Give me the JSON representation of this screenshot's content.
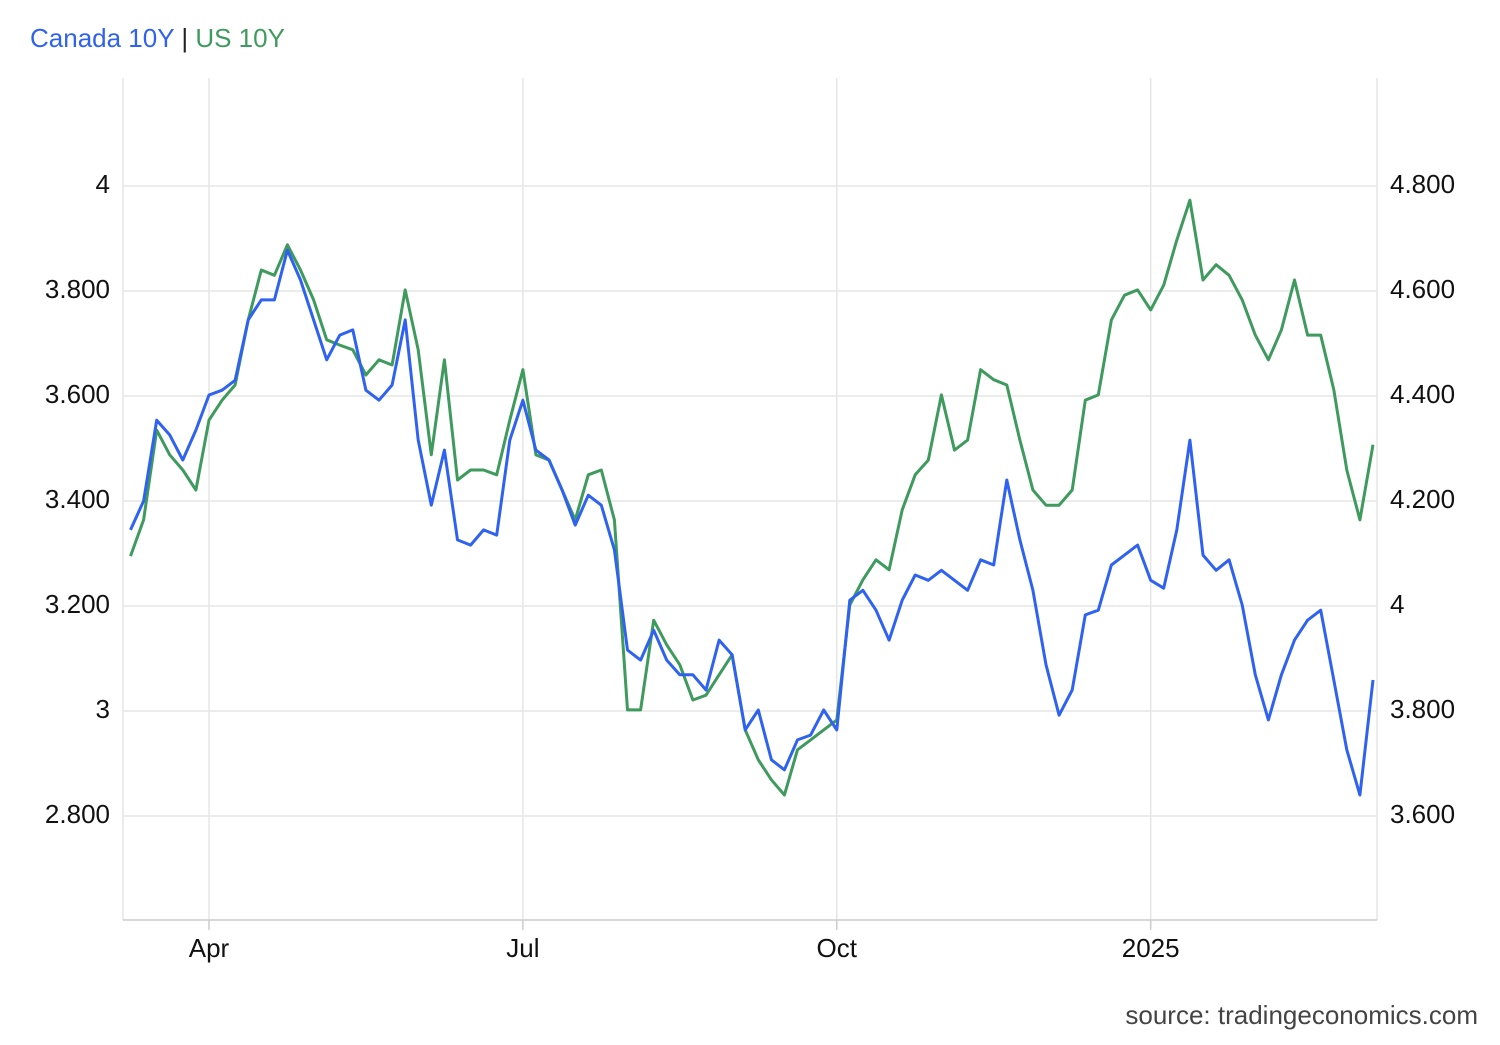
{
  "chart_data": {
    "type": "line",
    "title_separator": "|",
    "source": "source: tradingeconomics.com",
    "categories": [
      null,
      null,
      null,
      null,
      null,
      null,
      "Apr",
      null,
      null,
      null,
      null,
      null,
      null,
      null,
      null,
      null,
      null,
      null,
      null,
      null,
      null,
      null,
      null,
      null,
      null,
      null,
      null,
      null,
      null,
      null,
      "Jul",
      null,
      null,
      null,
      null,
      null,
      null,
      null,
      null,
      null,
      null,
      null,
      null,
      null,
      null,
      null,
      null,
      null,
      null,
      null,
      null,
      null,
      null,
      null,
      "Oct",
      null,
      null,
      null,
      null,
      null,
      null,
      null,
      null,
      null,
      null,
      null,
      null,
      null,
      null,
      null,
      null,
      null,
      null,
      null,
      null,
      null,
      null,
      null,
      "2025",
      null,
      null,
      null,
      null,
      null,
      null,
      null,
      null,
      null,
      null,
      null,
      null,
      null,
      null,
      null,
      null,
      null
    ],
    "series": [
      {
        "name": "Canada 10Y",
        "color": "#2f62f0",
        "axis": "y",
        "values": [
          3.345,
          3.4,
          3.554,
          3.526,
          3.478,
          3.535,
          3.602,
          3.611,
          3.63,
          3.745,
          3.783,
          3.783,
          3.878,
          3.821,
          3.745,
          3.669,
          3.716,
          3.726,
          3.611,
          3.592,
          3.621,
          3.745,
          3.516,
          3.392,
          3.497,
          3.326,
          3.316,
          3.345,
          3.335,
          3.516,
          3.592,
          3.497,
          3.478,
          3.421,
          3.354,
          3.411,
          3.392,
          3.307,
          3.116,
          3.097,
          3.154,
          3.097,
          3.069,
          3.069,
          3.04,
          3.135,
          3.107,
          2.964,
          3.002,
          2.907,
          2.888,
          2.945,
          2.954,
          3.002,
          2.964,
          3.211,
          3.23,
          3.192,
          3.135,
          3.211,
          3.259,
          3.249,
          3.268,
          3.249,
          3.23,
          3.288,
          3.278,
          3.44,
          3.326,
          3.23,
          3.088,
          2.992,
          3.04,
          3.183,
          3.192,
          3.278,
          3.297,
          3.316,
          3.249,
          3.234,
          3.345,
          3.516,
          3.297,
          3.268,
          3.288,
          3.202,
          3.069,
          2.983,
          3.069,
          3.135,
          3.173,
          3.192,
          3.059,
          2.926,
          2.84,
          3.059
        ]
      },
      {
        "name": "US 10Y",
        "color": "#3f9a5e",
        "axis": "y2",
        "values": [
          4.095,
          4.164,
          4.335,
          4.288,
          4.259,
          4.221,
          4.354,
          4.392,
          4.421,
          4.545,
          4.64,
          4.63,
          4.688,
          4.64,
          4.583,
          4.507,
          4.497,
          4.488,
          4.44,
          4.469,
          4.459,
          4.602,
          4.488,
          4.288,
          4.469,
          4.24,
          4.259,
          4.259,
          4.25,
          4.354,
          4.45,
          4.288,
          4.278,
          4.221,
          4.164,
          4.25,
          4.259,
          4.164,
          3.802,
          3.802,
          3.973,
          3.926,
          3.888,
          3.821,
          3.83,
          3.869,
          3.907,
          3.764,
          3.707,
          3.669,
          3.64,
          3.726,
          3.745,
          3.764,
          3.783,
          4.002,
          4.05,
          4.088,
          4.069,
          4.183,
          4.25,
          4.278,
          4.402,
          4.297,
          4.316,
          4.45,
          4.431,
          4.421,
          4.316,
          4.221,
          4.192,
          4.192,
          4.221,
          4.392,
          4.402,
          4.545,
          4.592,
          4.602,
          4.564,
          4.611,
          4.697,
          4.773,
          4.621,
          4.65,
          4.63,
          4.583,
          4.516,
          4.469,
          4.526,
          4.621,
          4.516,
          4.516,
          4.412,
          4.259,
          4.164,
          4.307
        ]
      }
    ],
    "ylim": [
      2.6,
      4.2
    ],
    "yticks": [
      {
        "value": 2.8,
        "label": "2.800"
      },
      3,
      {
        "value": 3.2,
        "label": "3.200"
      },
      {
        "value": 3.4,
        "label": "3.400"
      },
      {
        "value": 3.6,
        "label": "3.600"
      },
      {
        "value": 3.8,
        "label": "3.800"
      },
      4
    ],
    "y2lim": [
      3.4,
      5.0
    ],
    "y2ticks": [
      {
        "value": 3.6,
        "label": "3.600"
      },
      {
        "value": 3.8,
        "label": "3.800"
      },
      4,
      {
        "value": 4.2,
        "label": "4.200"
      },
      {
        "value": 4.4,
        "label": "4.400"
      },
      {
        "value": 4.6,
        "label": "4.600"
      },
      {
        "value": 4.8,
        "label": "4.800"
      }
    ],
    "grid": true
  }
}
